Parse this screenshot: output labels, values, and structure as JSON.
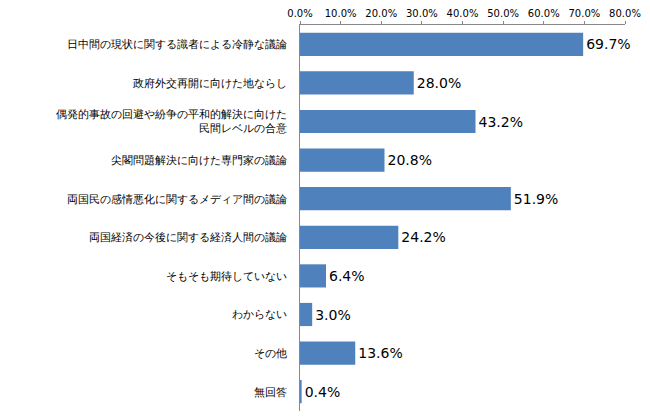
{
  "chart_data": {
    "type": "bar",
    "orientation": "horizontal",
    "categories": [
      "日中間の現状に関する識者による冷静な議論",
      "政府外交再開に向けた地ならし",
      "偶発的事故の回避や紛争の平和的解決に向けた\n民間レベルの合意",
      "尖閣問題解決に向けた専門家の議論",
      "両国民の感情悪化に関するメディア間の議論",
      "両国経済の今後に関する経済人間の議論",
      "そもそも期待していない",
      "わからない",
      "その他",
      "無回答"
    ],
    "values": [
      69.7,
      28.0,
      43.2,
      20.8,
      51.9,
      24.2,
      6.4,
      3.0,
      13.6,
      0.4
    ],
    "value_labels": [
      "69.7%",
      "28.0%",
      "43.2%",
      "20.8%",
      "51.9%",
      "24.2%",
      "6.4%",
      "3.0%",
      "13.6%",
      "0.4%"
    ],
    "data_labels": true,
    "color": "#4f81bd",
    "xlim": [
      0,
      80
    ],
    "xticks": [
      {
        "value": 0,
        "label": "0.0%"
      },
      {
        "value": 10,
        "label": "10.0%"
      },
      {
        "value": 20,
        "label": "20.0%"
      },
      {
        "value": 30,
        "label": "30.0%"
      },
      {
        "value": 40,
        "label": "40.0%"
      },
      {
        "value": 50,
        "label": "50.0%"
      },
      {
        "value": 60,
        "label": "60.0%"
      },
      {
        "value": 70,
        "label": "70.0%"
      },
      {
        "value": 80,
        "label": "80.0%"
      }
    ],
    "grid": false
  }
}
